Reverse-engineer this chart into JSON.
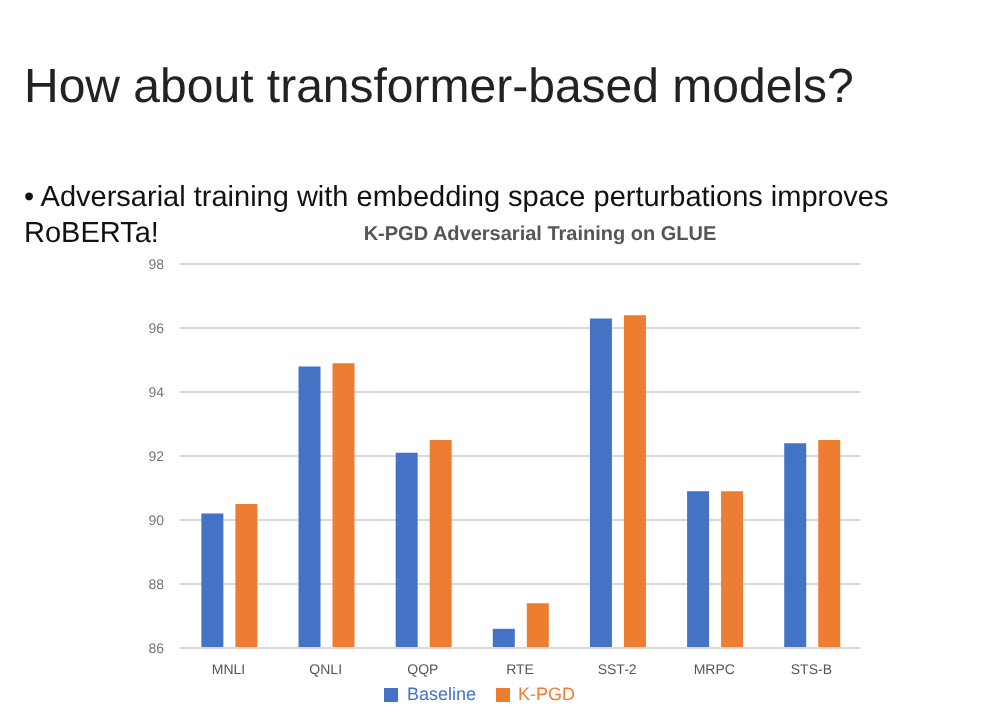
{
  "chart_data": {
    "type": "bar",
    "title": "K-PGD Adversarial Training on GLUE",
    "annotations": [
      "How about transformer-based models?",
      "• Adversarial training with embedding space perturbations improves RoBERTa!"
    ],
    "categories": [
      "MNLI",
      "QNLI",
      "QQP",
      "RTE",
      "SST-2",
      "MRPC",
      "STS-B"
    ],
    "series": [
      {
        "name": "Baseline",
        "color": "#4472c4",
        "values": [
          90.2,
          94.8,
          92.1,
          86.6,
          96.3,
          90.9,
          92.4
        ]
      },
      {
        "name": "K-PGD",
        "color": "#ed7d31",
        "values": [
          90.5,
          94.9,
          92.5,
          87.4,
          96.4,
          90.9,
          92.5
        ]
      }
    ],
    "ylim": [
      86,
      98
    ],
    "yticks": [
      86,
      88,
      90,
      92,
      94,
      96,
      98
    ],
    "grid": "y",
    "legend": "bottom"
  }
}
